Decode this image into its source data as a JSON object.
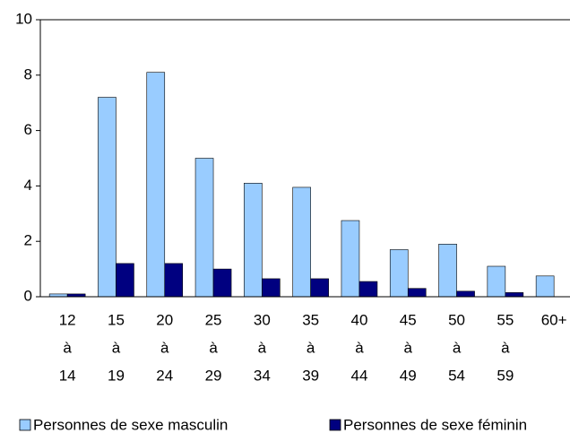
{
  "chart_data": {
    "type": "bar",
    "categories": [
      [
        "12",
        "à",
        "14"
      ],
      [
        "15",
        "à",
        "19"
      ],
      [
        "20",
        "à",
        "24"
      ],
      [
        "25",
        "à",
        "29"
      ],
      [
        "30",
        "à",
        "34"
      ],
      [
        "35",
        "à",
        "39"
      ],
      [
        "40",
        "à",
        "44"
      ],
      [
        "45",
        "à",
        "49"
      ],
      [
        "50",
        "à",
        "54"
      ],
      [
        "55",
        "à",
        "59"
      ],
      [
        "60+"
      ]
    ],
    "series": [
      {
        "name": "Personnes de sexe masculin",
        "color": "#99ccff",
        "values": [
          0.1,
          7.2,
          8.1,
          5.0,
          4.1,
          3.95,
          2.75,
          1.7,
          1.9,
          1.1,
          0.75
        ]
      },
      {
        "name": "Personnes de sexe féminin",
        "color": "#000080",
        "values": [
          0.1,
          1.2,
          1.2,
          1.0,
          0.65,
          0.65,
          0.55,
          0.3,
          0.2,
          0.15,
          null
        ]
      }
    ],
    "ylim": [
      0,
      10
    ],
    "yticks": [
      0,
      2,
      4,
      6,
      8,
      10
    ],
    "grid": false
  }
}
